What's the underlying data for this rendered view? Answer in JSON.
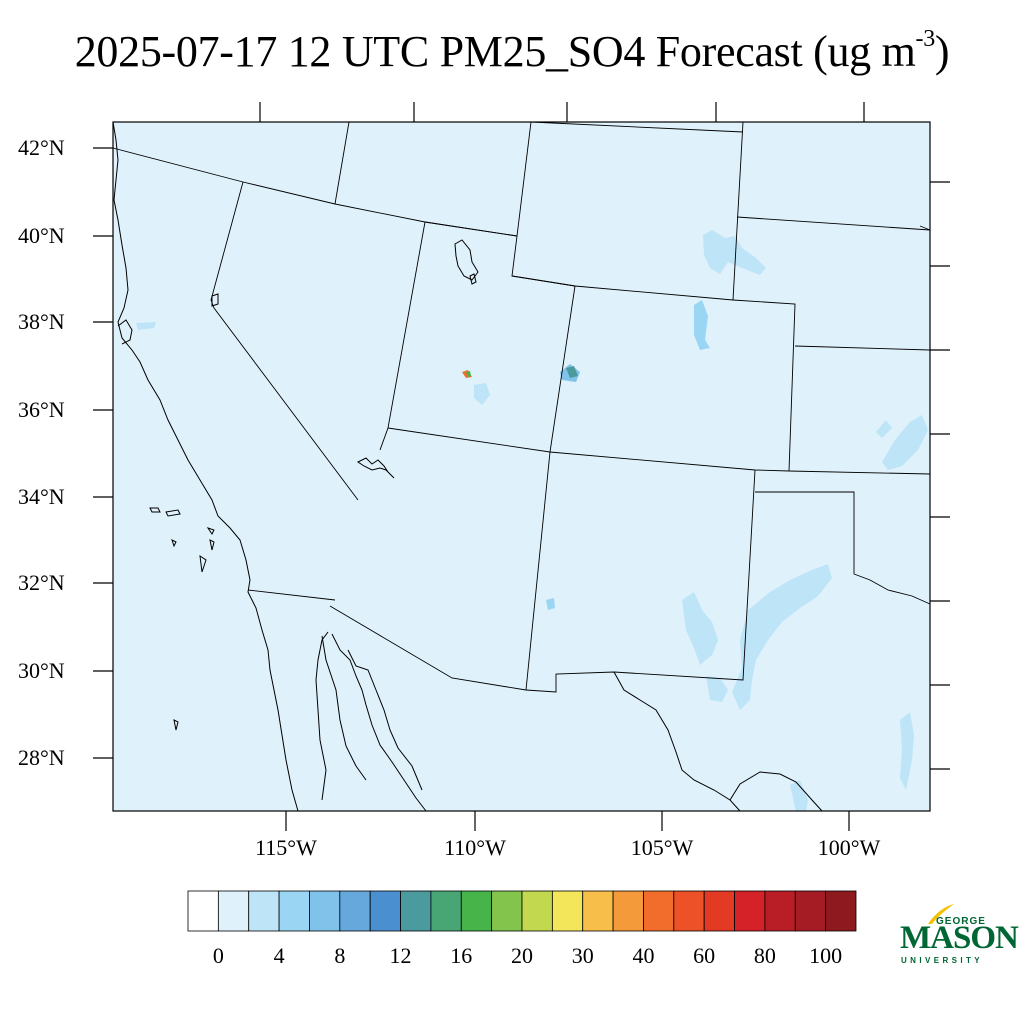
{
  "title": {
    "main": "2025-07-17 12 UTC PM25_SO4 Forecast (ug m",
    "superscript": "-3",
    "close": ")"
  },
  "map": {
    "background_fill": "#dff1fb",
    "lat_labels": [
      "42°N",
      "40°N",
      "38°N",
      "36°N",
      "34°N",
      "32°N",
      "30°N",
      "28°N"
    ],
    "lon_labels": [
      "115°W",
      "110°W",
      "105°W",
      "100°W"
    ]
  },
  "colorbar": {
    "colors": [
      "#ffffff",
      "#dff1fb",
      "#bde4f7",
      "#9bd5f4",
      "#80c2ea",
      "#67a8dc",
      "#4a8fcf",
      "#4a9a9e",
      "#48a674",
      "#46b448",
      "#82c44c",
      "#c2d84e",
      "#f4e65a",
      "#f8be4a",
      "#f59a3a",
      "#f26d2b",
      "#ec5128",
      "#e33a24",
      "#d52229",
      "#b91e27",
      "#a51c25",
      "#8e1a1f"
    ],
    "labels": [
      "0",
      "4",
      "8",
      "12",
      "16",
      "20",
      "30",
      "40",
      "60",
      "80",
      "100"
    ]
  },
  "logo": {
    "george": "GEORGE",
    "mason": "MASON",
    "university": "UNIVERSITY"
  }
}
